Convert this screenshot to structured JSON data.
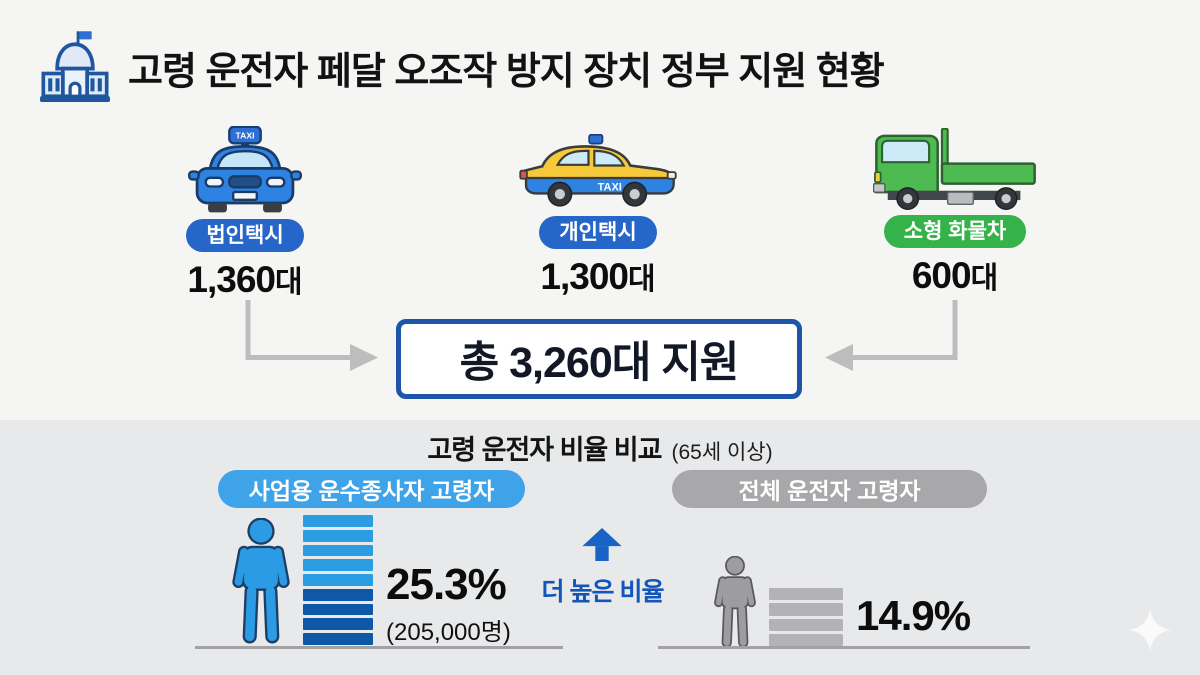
{
  "header": {
    "title": "고령 운전자 페달 오조작 방지 장치 정부 지원 현황"
  },
  "vehicles": [
    {
      "badge": "법인택시",
      "count_value": "1,360",
      "count_unit": "대",
      "badge_color": "#2566c8",
      "sign_text": "TAXI"
    },
    {
      "badge": "개인택시",
      "count_value": "1,300",
      "count_unit": "대",
      "badge_color": "#2566c8",
      "sign_text": "TAXI"
    },
    {
      "badge": "소형 화물차",
      "count_value": "600",
      "count_unit": "대",
      "badge_color": "#35b34a"
    }
  ],
  "total": {
    "text": "총 3,260대 지원"
  },
  "comparison": {
    "title": "고령 운전자 비율 비교",
    "subtitle": "(65세 이상)",
    "higher_label": "더 높은 비율",
    "left": {
      "label": "사업용 운수종사자 고령자",
      "percent": "25.3%",
      "count_note": "(205,000명)",
      "pill_color": "#3fa3e9",
      "bar": {
        "segments": 9,
        "light_count": 5,
        "light_color": "#2b9ee3",
        "dark_color": "#0f57a7"
      }
    },
    "right": {
      "label": "전체 운전자 고령자",
      "percent": "14.9%",
      "pill_color": "#a8a8aa",
      "bar": {
        "segments": 4,
        "color": "#b3b3b5"
      }
    }
  },
  "colors": {
    "box_border_blue": "#1d55a8",
    "connector_gray": "#bdbdbd",
    "up_arrow_blue": "#1863c6",
    "person_blue": "#2b9ce4",
    "person_gray": "#9d9da0"
  },
  "chart_data": [
    {
      "type": "bar",
      "title": "고령 운전자 페달 오조작 방지 장치 정부 지원 현황",
      "categories": [
        "법인택시",
        "개인택시",
        "소형 화물차"
      ],
      "values": [
        1360,
        1300,
        600
      ],
      "unit": "대",
      "total": 3260,
      "total_label": "총 3,260대 지원"
    },
    {
      "type": "bar",
      "title": "고령 운전자 비율 비교 (65세 이상)",
      "categories": [
        "사업용 운수종사자 고령자",
        "전체 운전자 고령자"
      ],
      "values": [
        25.3,
        14.9
      ],
      "unit": "%",
      "annotations": [
        "사업용 운수종사자 고령자 205,000명",
        "더 높은 비율"
      ]
    }
  ]
}
